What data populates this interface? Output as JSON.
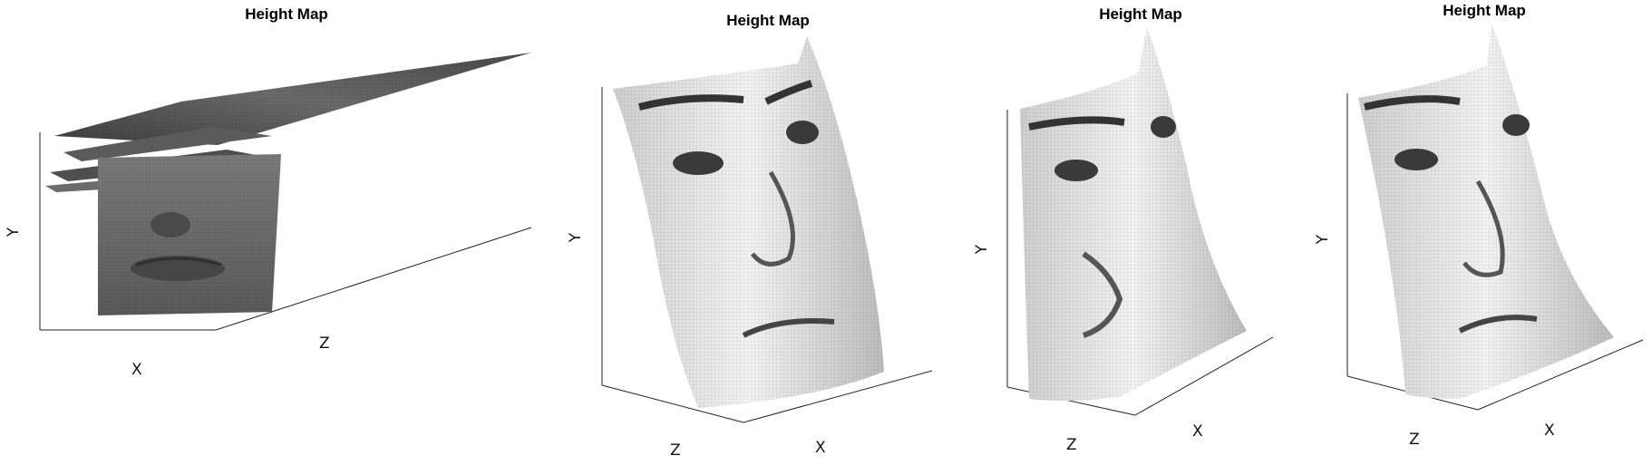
{
  "figure": {
    "panels": [
      {
        "title": "Height Map",
        "xlabel": "X",
        "ylabel": "Y",
        "zlabel": "Z"
      },
      {
        "title": "Height Map",
        "xlabel": "X",
        "ylabel": "Y",
        "zlabel": "Z"
      },
      {
        "title": "Height Map",
        "xlabel": "X",
        "ylabel": "Y",
        "zlabel": "Z"
      },
      {
        "title": "Height Map",
        "xlabel": "X",
        "ylabel": "Y",
        "zlabel": "Z"
      }
    ]
  },
  "chart_data": [
    {
      "type": "surface",
      "title": "Height Map",
      "xlabel": "X",
      "ylabel": "Y",
      "zlabel": "Z",
      "colormap": "gray",
      "grid": false,
      "texture": "face"
    },
    {
      "type": "surface",
      "title": "Height Map",
      "xlabel": "X",
      "ylabel": "Y",
      "zlabel": "Z",
      "colormap": "gray",
      "grid": false,
      "texture": "face"
    },
    {
      "type": "surface",
      "title": "Height Map",
      "xlabel": "X",
      "ylabel": "Y",
      "zlabel": "Z",
      "colormap": "gray",
      "grid": false,
      "texture": "face"
    },
    {
      "type": "surface",
      "title": "Height Map",
      "xlabel": "X",
      "ylabel": "Y",
      "zlabel": "Z",
      "colormap": "gray",
      "grid": false,
      "texture": "face"
    }
  ]
}
